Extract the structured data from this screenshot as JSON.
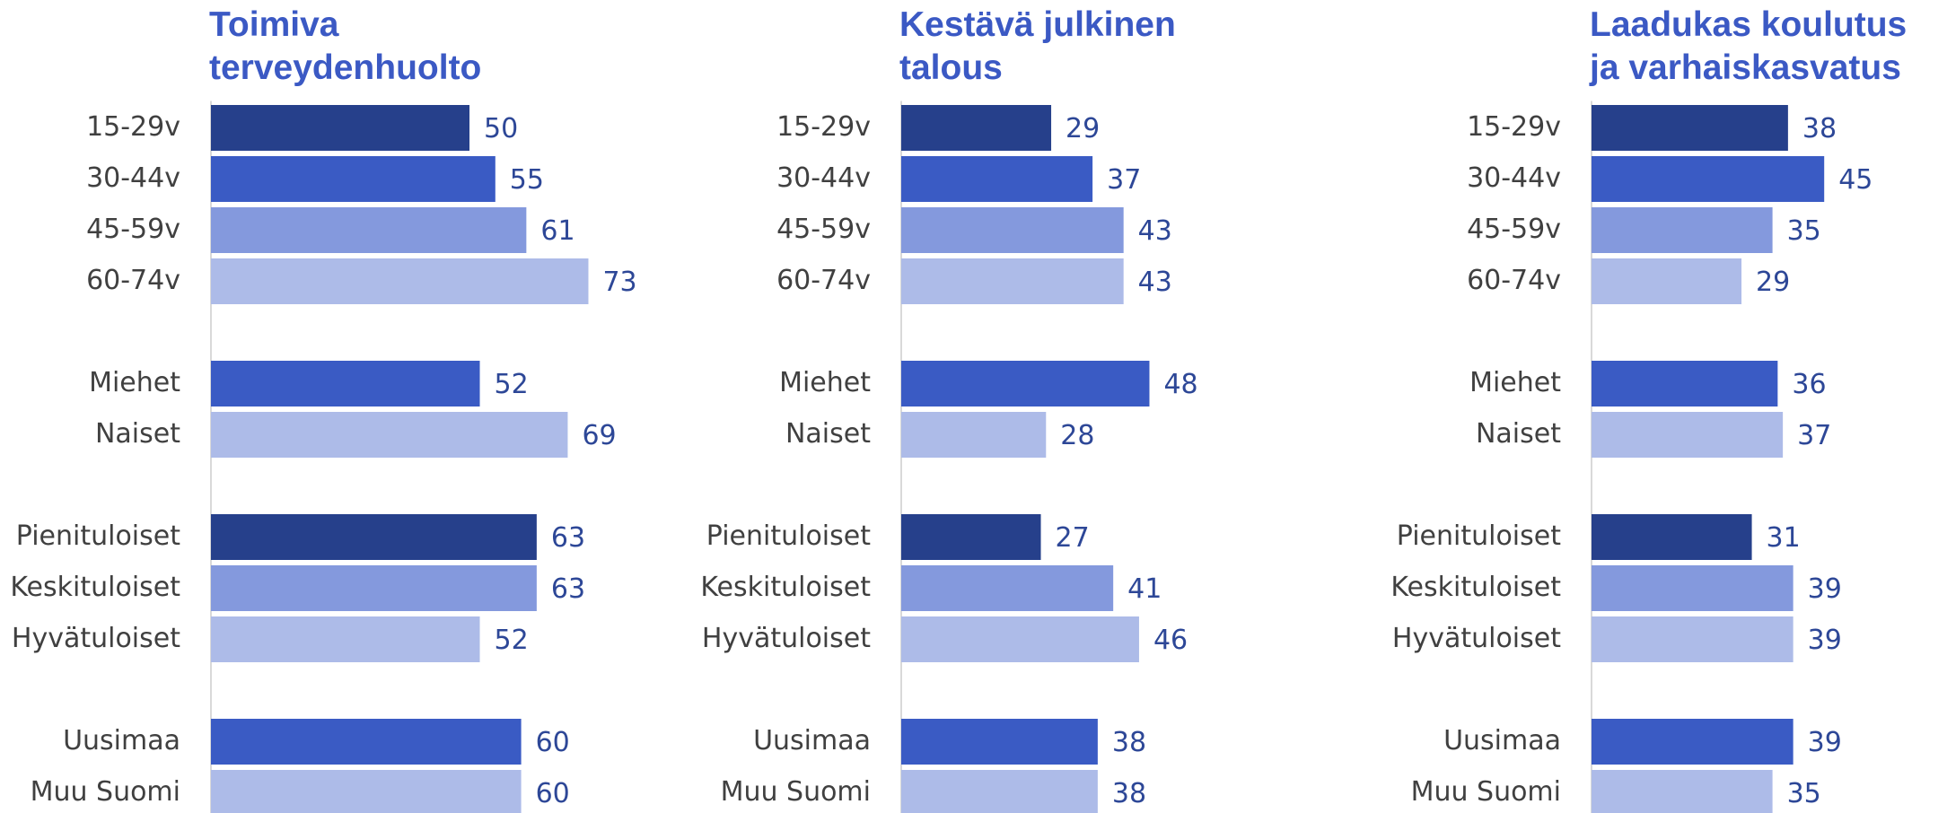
{
  "chart_data": [
    {
      "type": "bar",
      "orientation": "horizontal",
      "title": [
        "Toimiva",
        "terveydenhuolto"
      ],
      "categories": [
        "15-29v",
        "30-44v",
        "45-59v",
        "60-74v",
        null,
        "Miehet",
        "Naiset",
        null,
        "Pienituloiset",
        "Keskituloiset",
        "Hyvätuloiset",
        null,
        "Uusimaa",
        "Muu Suomi"
      ],
      "values": [
        50,
        55,
        61,
        73,
        null,
        52,
        69,
        null,
        63,
        63,
        52,
        null,
        60,
        60
      ],
      "colors": [
        "#26408b",
        "#3a5bc4",
        "#8499dd",
        "#adbbe8",
        null,
        "#3a5bc4",
        "#adbbe8",
        null,
        "#26408b",
        "#8499dd",
        "#adbbe8",
        null,
        "#3a5bc4",
        "#adbbe8"
      ]
    },
    {
      "type": "bar",
      "orientation": "horizontal",
      "title": [
        "Kestävä julkinen",
        "talous"
      ],
      "categories": [
        "15-29v",
        "30-44v",
        "45-59v",
        "60-74v",
        null,
        "Miehet",
        "Naiset",
        null,
        "Pienituloiset",
        "Keskituloiset",
        "Hyvätuloiset",
        null,
        "Uusimaa",
        "Muu Suomi"
      ],
      "values": [
        29,
        37,
        43,
        43,
        null,
        48,
        28,
        null,
        27,
        41,
        46,
        null,
        38,
        38
      ],
      "colors": [
        "#26408b",
        "#3a5bc4",
        "#8499dd",
        "#adbbe8",
        null,
        "#3a5bc4",
        "#adbbe8",
        null,
        "#26408b",
        "#8499dd",
        "#adbbe8",
        null,
        "#3a5bc4",
        "#adbbe8"
      ]
    },
    {
      "type": "bar",
      "orientation": "horizontal",
      "title": [
        "Laadukas koulutus",
        "ja varhaiskasvatus"
      ],
      "categories": [
        "15-29v",
        "30-44v",
        "45-59v",
        "60-74v",
        null,
        "Miehet",
        "Naiset",
        null,
        "Pienituloiset",
        "Keskituloiset",
        "Hyvätuloiset",
        null,
        "Uusimaa",
        "Muu Suomi"
      ],
      "values": [
        38,
        45,
        35,
        29,
        null,
        36,
        37,
        null,
        31,
        39,
        39,
        null,
        39,
        35
      ],
      "colors": [
        "#26408b",
        "#3a5bc4",
        "#8499dd",
        "#adbbe8",
        null,
        "#3a5bc4",
        "#adbbe8",
        null,
        "#26408b",
        "#8499dd",
        "#adbbe8",
        null,
        "#3a5bc4",
        "#adbbe8"
      ]
    }
  ]
}
